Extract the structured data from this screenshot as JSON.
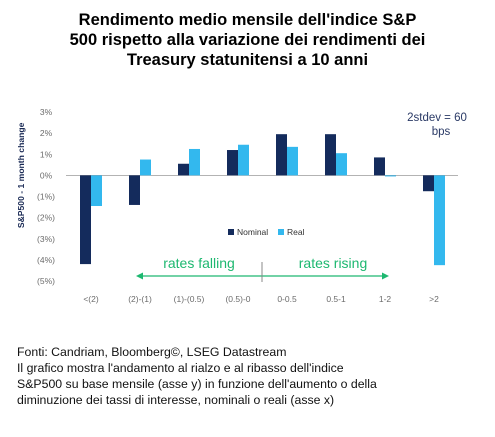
{
  "title_lines": [
    "Rendimento medio mensile dell'indice S&P",
    "500 rispetto alla variazione dei rendimenti dei",
    "Treasury statunitensi a 10 anni"
  ],
  "footer_lines": [
    "Fonti: Candriam, Bloomberg©, LSEG Datastream",
    "Il grafico mostra l'andamento al rialzo e al ribasso dell'indice",
    "S&P500 su base mensile (asse y) in funzione dell'aumento o della",
    "diminuzione dei tassi di interesse, nominali o reali (asse x)"
  ],
  "colors": {
    "nominal": "#142b5c",
    "real": "#33b8ee",
    "annotation": "#1db870",
    "axis_text": "#6b6b6b",
    "ylabel": "#1a2a55"
  },
  "chart_data": {
    "type": "bar",
    "categories": [
      "<(2)",
      "(2)-(1)",
      "(1)-(0.5)",
      "(0.5)-0",
      "0-0.5",
      "0.5-1",
      "1-2",
      ">2"
    ],
    "series": [
      {
        "name": "Nominal",
        "values": [
          -4.2,
          -1.4,
          0.55,
          1.2,
          1.95,
          1.95,
          0.85,
          -0.75
        ]
      },
      {
        "name": "Real",
        "values": [
          -1.45,
          0.75,
          1.25,
          1.45,
          1.35,
          1.05,
          -0.05,
          -4.25
        ]
      }
    ],
    "ylabel": "S&P500 - 1 month change",
    "ylim": [
      -5,
      3
    ],
    "yticks": [
      3,
      2,
      1,
      0,
      -1,
      -2,
      -3,
      -4,
      -5
    ],
    "ytick_labels": [
      "3%",
      "2%",
      "1%",
      "0%",
      "(1%)",
      "(2%)",
      "(3%)",
      "(4%)",
      "(5%)"
    ],
    "legend_position": "center-right",
    "annotation_stdev": [
      "2stdev = 60",
      "bps"
    ],
    "annotation_falling": "rates falling",
    "annotation_rising": "rates rising"
  }
}
